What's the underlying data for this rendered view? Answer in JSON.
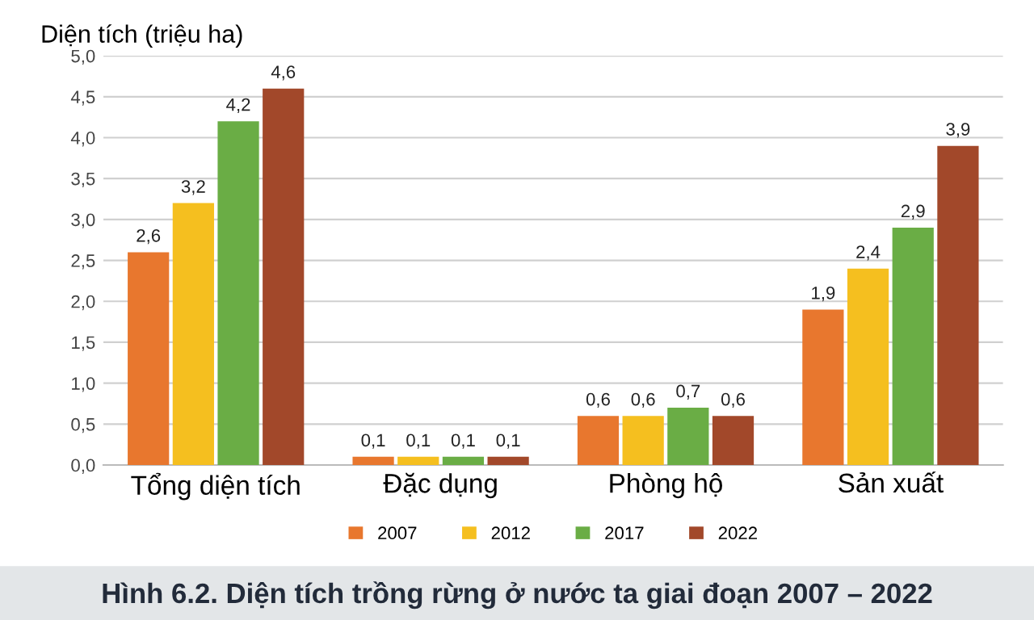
{
  "chart_data": {
    "type": "bar",
    "title": "Hình 6.2. Diện tích trồng rừng ở nước ta giai đoạn 2007 – 2022",
    "ylabel": "Diện tích (triệu ha)",
    "categories": [
      "Tổng diện tích",
      "Đặc dụng",
      "Phòng hộ",
      "Sản xuất"
    ],
    "series": [
      {
        "name": "2007",
        "color": "#e8772e",
        "values": [
          2.6,
          0.1,
          0.6,
          1.9
        ],
        "value_labels": [
          "2,6",
          "0,1",
          "0,6",
          "1,9"
        ]
      },
      {
        "name": "2012",
        "color": "#f5bf1f",
        "values": [
          3.2,
          0.1,
          0.6,
          2.4
        ],
        "value_labels": [
          "3,2",
          "0,1",
          "0,6",
          "2,4"
        ]
      },
      {
        "name": "2017",
        "color": "#6aad45",
        "values": [
          4.2,
          0.1,
          0.7,
          2.9
        ],
        "value_labels": [
          "4,2",
          "0,1",
          "0,7",
          "2,9"
        ]
      },
      {
        "name": "2022",
        "color": "#a2482a",
        "values": [
          4.6,
          0.1,
          0.6,
          3.9
        ],
        "value_labels": [
          "4,6",
          "0,1",
          "0,6",
          "3,9"
        ]
      }
    ],
    "ylim": [
      0,
      5
    ],
    "yticks": [
      {
        "value": 0,
        "label": "0,0"
      },
      {
        "value": 0.5,
        "label": "0,5"
      },
      {
        "value": 1,
        "label": "1,0"
      },
      {
        "value": 1.5,
        "label": "1,5"
      },
      {
        "value": 2,
        "label": "2,0"
      },
      {
        "value": 2.5,
        "label": "2,5"
      },
      {
        "value": 3,
        "label": "3,0"
      },
      {
        "value": 3.5,
        "label": "3,5"
      },
      {
        "value": 4,
        "label": "4,0"
      },
      {
        "value": 4.5,
        "label": "4,5"
      },
      {
        "value": 5,
        "label": "5,0"
      }
    ],
    "grid": "y",
    "legend": "bottom"
  }
}
